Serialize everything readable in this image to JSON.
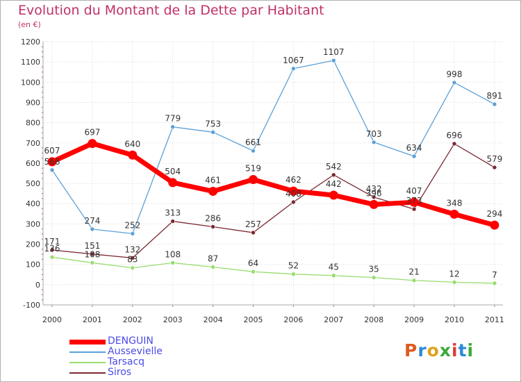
{
  "header": {
    "title": "Evolution du Montant de la Dette par Habitant",
    "unit": "(en €)"
  },
  "logo": {
    "text": "Proxiti",
    "colors": [
      "#e05a1e",
      "#2a8ad8",
      "#e0a020",
      "#3aa93a",
      "#e03a3a",
      "#2a8ad8",
      "#3aa93a"
    ]
  },
  "chart_data": {
    "type": "line",
    "title": "Evolution du Montant de la Dette par Habitant",
    "ylabel": "(en €)",
    "xlabel": "",
    "x": [
      "2000",
      "2001",
      "2002",
      "2003",
      "2004",
      "2005",
      "2006",
      "2007",
      "2008",
      "2009",
      "2010",
      "2011"
    ],
    "ylim": [
      -100,
      1200
    ],
    "yticks": [
      "-100",
      "0",
      "100",
      "200",
      "300",
      "400",
      "500",
      "600",
      "700",
      "800",
      "900",
      "1000",
      "1100",
      "1200"
    ],
    "grid": true,
    "legend": "bottom-left",
    "series": [
      {
        "name": "DENGUIN",
        "color": "#ff0000",
        "values": [
          607,
          697,
          640,
          504,
          461,
          519,
          462,
          442,
          396,
          407,
          348,
          294
        ],
        "labels": [
          "607",
          "697",
          "640",
          "504",
          "461",
          "519",
          "462",
          "442",
          "396",
          "407",
          "348",
          "294"
        ]
      },
      {
        "name": "Aussevielle",
        "color": "#5aa0d8",
        "values": [
          566,
          274,
          252,
          779,
          753,
          661,
          1067,
          1107,
          703,
          634,
          998,
          891
        ],
        "labels": [
          "566",
          "274",
          "252",
          "779",
          "753",
          "661",
          "1067",
          "1107",
          "703",
          "634",
          "998",
          "891"
        ]
      },
      {
        "name": "Tarsacq",
        "color": "#98dc6e",
        "values": [
          136,
          108,
          83,
          108,
          87,
          64,
          52,
          45,
          35,
          21,
          12,
          7
        ],
        "labels": [
          "136",
          "108",
          "83",
          "108",
          "87",
          "64",
          "52",
          "45",
          "35",
          "21",
          "12",
          "7"
        ]
      },
      {
        "name": "Siros",
        "color": "#7a2a32",
        "values": [
          171,
          151,
          132,
          313,
          286,
          257,
          408,
          542,
          432,
          373,
          696,
          579
        ],
        "labels": [
          "171",
          "151",
          "132",
          "313",
          "286",
          "257",
          "408",
          "542",
          "432",
          "373",
          "696",
          "579"
        ]
      }
    ]
  }
}
